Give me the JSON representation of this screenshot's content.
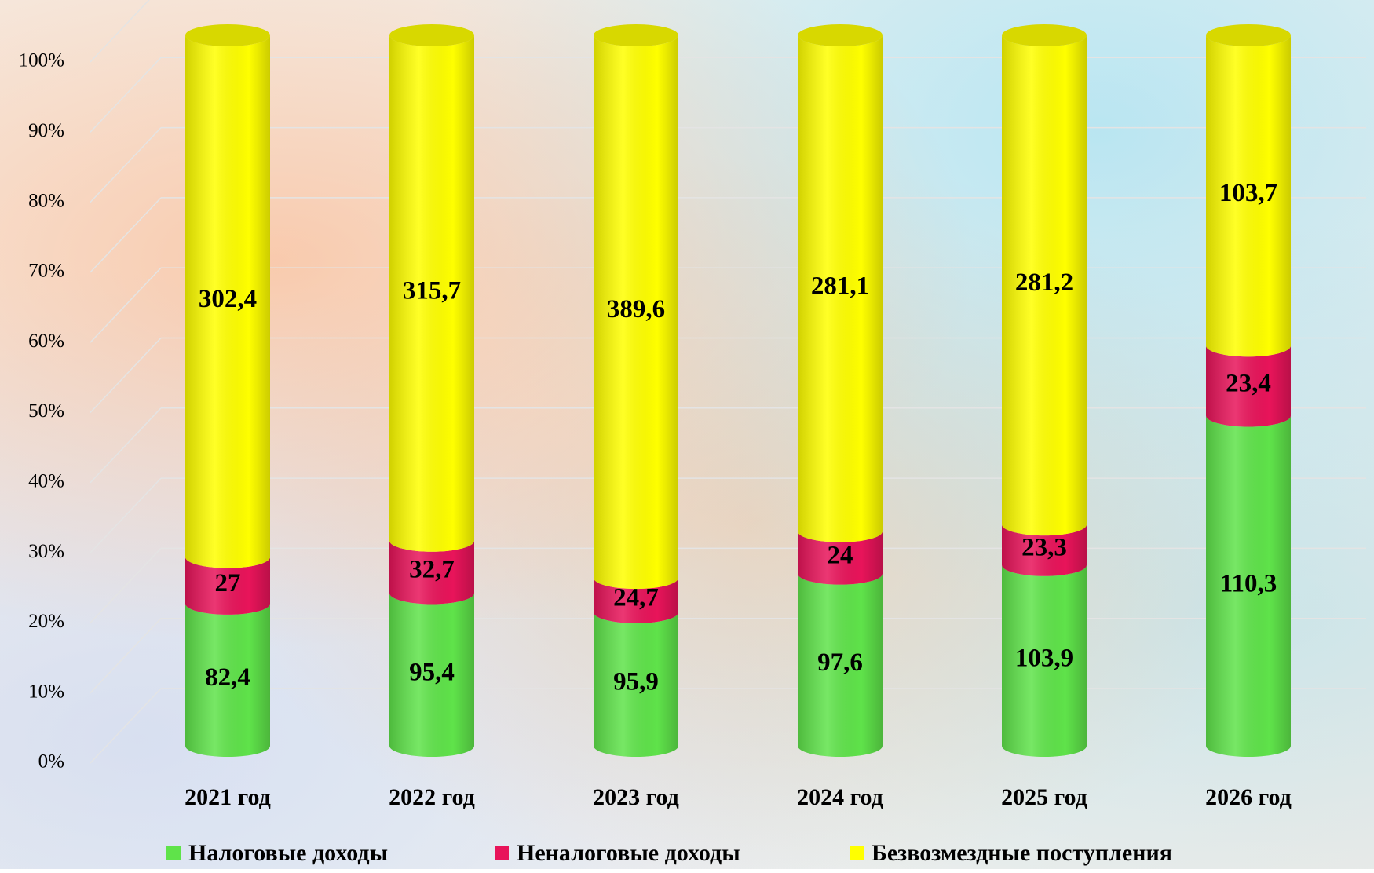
{
  "chart_data": {
    "type": "bar",
    "stacked": "percent",
    "categories": [
      "2021 год",
      "2022 год",
      "2023 год",
      "2024 год",
      "2025 год",
      "2026 год"
    ],
    "series": [
      {
        "name": "Налоговые доходы",
        "color": "#5fe34a",
        "values": [
          82.4,
          95.4,
          95.9,
          97.6,
          103.9,
          110.3
        ],
        "value_labels": [
          "82,4",
          "95,4",
          "95,9",
          "97,6",
          "103,9",
          "110,3"
        ]
      },
      {
        "name": "Неналоговые доходы",
        "color": "#e8145a",
        "values": [
          27,
          32.7,
          24.7,
          24,
          23.3,
          23.4
        ],
        "value_labels": [
          "27",
          "32,7",
          "24,7",
          "24",
          "23,3",
          "23,4"
        ]
      },
      {
        "name": "Безвозмездные поступления",
        "color": "#ffff00",
        "values": [
          302.4,
          315.7,
          389.6,
          281.1,
          281.2,
          103.7
        ],
        "value_labels": [
          "302,4",
          "315,7",
          "389,6",
          "281,1",
          "281,2",
          "103,7"
        ]
      }
    ],
    "ylim": [
      0,
      100
    ],
    "yticks": [
      {
        "value": 0,
        "label": "0%"
      },
      {
        "value": 10,
        "label": "10%"
      },
      {
        "value": 20,
        "label": "20%"
      },
      {
        "value": 30,
        "label": "30%"
      },
      {
        "value": 40,
        "label": "40%"
      },
      {
        "value": 50,
        "label": "50%"
      },
      {
        "value": 60,
        "label": "60%"
      },
      {
        "value": 70,
        "label": "70%"
      },
      {
        "value": 80,
        "label": "80%"
      },
      {
        "value": 90,
        "label": "90%"
      },
      {
        "value": 100,
        "label": "100%"
      }
    ],
    "grid": true,
    "legend": "bottom"
  }
}
